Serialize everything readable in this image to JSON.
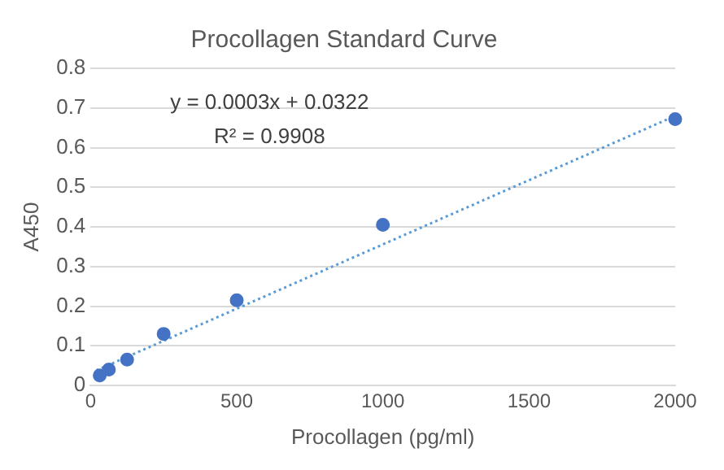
{
  "chart_data": {
    "type": "scatter",
    "title": "Procollagen Standard Curve",
    "xlabel": "Procollagen (pg/ml)",
    "ylabel": "A450",
    "x": [
      31.25,
      62.5,
      125,
      250,
      500,
      1000,
      2000
    ],
    "series": [
      {
        "color": "#4472c4",
        "values": [
          0.025,
          0.04,
          0.065,
          0.13,
          0.215,
          0.405,
          0.672
        ],
        "marker": "circle"
      },
      {
        "type": "line",
        "color": "#5b9bd5",
        "x": [
          20,
          2000
        ],
        "values": [
          0.038,
          0.68
        ],
        "marker": "none",
        "line_style": "dotted"
      }
    ],
    "xlim": [
      0,
      2000
    ],
    "xticks": [
      0,
      500,
      1000,
      1500,
      2000
    ],
    "ylim": [
      0,
      0.8
    ],
    "yticks": [
      0,
      0.1,
      0.2,
      0.3,
      0.4,
      0.5,
      0.6,
      0.7,
      0.8
    ],
    "grid": "y",
    "legend": false,
    "annotations": [
      "y = 0.0003x + 0.0322",
      "R² = 0.9908"
    ]
  }
}
